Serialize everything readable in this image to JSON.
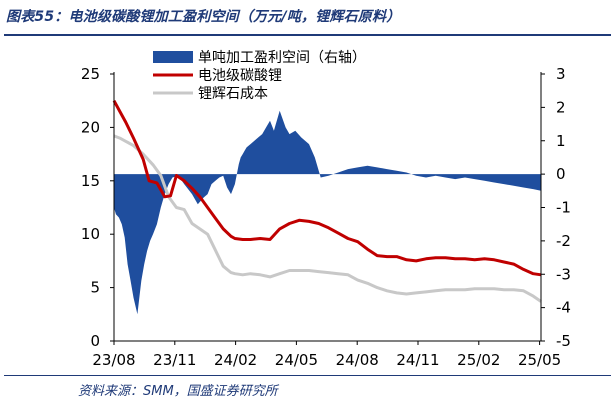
{
  "title": "图表55：电池级碳酸锂加工盈利空间（万元/吨，锂辉石原料）",
  "source": "资料来源：SMM，国盛证券研究所",
  "chart_data": {
    "type": "line",
    "x_tick_labels": [
      "23/08",
      "23/11",
      "24/02",
      "24/05",
      "24/08",
      "24/11",
      "25/02",
      "25/05"
    ],
    "y_left": {
      "ticks": [
        0,
        5,
        10,
        15,
        20,
        25
      ],
      "ylim": [
        0,
        25
      ]
    },
    "y_right": {
      "ticks": [
        -5,
        -4,
        -3,
        -2,
        -1,
        0,
        1,
        2,
        3
      ],
      "ylim": [
        -5,
        3
      ]
    },
    "legend": {
      "placement": "top-left"
    },
    "series": [
      {
        "name": "单吨加工盈利空间（右轴）",
        "type": "area",
        "axis": "right",
        "color": "#1f4e9e",
        "x": [
          0,
          0.1,
          0.25,
          0.4,
          0.55,
          0.7,
          0.85,
          1.0,
          1.2,
          1.4,
          1.55,
          1.7,
          1.85,
          2.0,
          2.2,
          2.4,
          2.6,
          2.8,
          3.0,
          3.3,
          3.6,
          4.0,
          4.3,
          4.6,
          4.8,
          5.0,
          5.2,
          5.4,
          5.6,
          5.8,
          6.0,
          6.2,
          6.4,
          6.5,
          6.6,
          6.7,
          6.8,
          7.0,
          7.2,
          7.4,
          7.6,
          7.8,
          8.0,
          8.2,
          8.5,
          8.8,
          9.0,
          9.3,
          9.6,
          10.0,
          10.3,
          10.6,
          11.0,
          11.5,
          12.0,
          12.5,
          13.0,
          13.5,
          14.0,
          14.5,
          15.0,
          15.5,
          16.0,
          16.5,
          17.0,
          17.5,
          18.0,
          18.5,
          19.0,
          19.5,
          20.0,
          20.5,
          21.0,
          21.5,
          21.9
        ],
        "values": [
          -1.0,
          -1.2,
          -1.3,
          -1.5,
          -1.9,
          -2.7,
          -3.2,
          -3.7,
          -4.2,
          -3.2,
          -2.7,
          -2.3,
          -2.0,
          -1.8,
          -1.5,
          -1.0,
          -0.6,
          -0.3,
          -0.1,
          -0.05,
          -0.3,
          -0.6,
          -0.9,
          -0.7,
          -0.6,
          -0.3,
          -0.2,
          -0.1,
          -0.05,
          -0.4,
          -0.6,
          -0.3,
          0.3,
          0.5,
          0.6,
          0.7,
          0.8,
          0.9,
          1.0,
          1.1,
          1.2,
          1.4,
          1.6,
          1.3,
          1.9,
          1.4,
          1.2,
          1.3,
          1.1,
          0.9,
          0.5,
          -0.1,
          -0.05,
          0.05,
          0.15,
          0.2,
          0.25,
          0.2,
          0.15,
          0.1,
          0.05,
          -0.05,
          -0.1,
          -0.05,
          -0.1,
          -0.15,
          -0.1,
          -0.15,
          -0.2,
          -0.25,
          -0.3,
          -0.35,
          -0.4,
          -0.45,
          -0.5
        ]
      },
      {
        "name": "电池级碳酸锂",
        "type": "line",
        "axis": "left",
        "color": "#c00000",
        "x": [
          0,
          0.3,
          0.6,
          1.0,
          1.5,
          1.8,
          2.2,
          2.6,
          2.9,
          3.2,
          3.6,
          4.0,
          4.4,
          4.8,
          5.2,
          5.6,
          6.0,
          6.2,
          6.6,
          7.0,
          7.5,
          8.0,
          8.5,
          9.0,
          9.5,
          10.0,
          10.5,
          11.0,
          11.5,
          12.0,
          12.5,
          13.0,
          13.5,
          14.0,
          14.5,
          15.0,
          15.5,
          16.0,
          16.5,
          17.0,
          17.5,
          18.0,
          18.5,
          19.0,
          19.5,
          20.0,
          20.5,
          21.0,
          21.5,
          21.9
        ],
        "values": [
          22.5,
          21.5,
          20.5,
          19.0,
          17.0,
          15.0,
          14.8,
          13.5,
          13.6,
          15.5,
          15.0,
          14.3,
          13.5,
          12.5,
          11.5,
          10.5,
          9.8,
          9.6,
          9.5,
          9.5,
          9.6,
          9.5,
          10.5,
          11.0,
          11.3,
          11.2,
          11.0,
          10.6,
          10.1,
          9.6,
          9.3,
          8.6,
          8.0,
          7.9,
          7.9,
          7.6,
          7.5,
          7.7,
          7.8,
          7.8,
          7.7,
          7.7,
          7.6,
          7.7,
          7.6,
          7.4,
          7.2,
          6.7,
          6.3,
          6.2
        ]
      },
      {
        "name": "锂辉石成本",
        "type": "line",
        "axis": "left",
        "color": "#c8c8c8",
        "x": [
          0,
          0.3,
          0.6,
          1.0,
          1.5,
          2.0,
          2.4,
          2.8,
          3.2,
          3.6,
          4.0,
          4.4,
          4.8,
          5.2,
          5.6,
          6.0,
          6.2,
          6.6,
          7.0,
          7.5,
          8.0,
          8.5,
          9.0,
          9.5,
          10.0,
          10.5,
          11.0,
          11.5,
          12.0,
          12.5,
          13.0,
          13.5,
          14.0,
          14.5,
          15.0,
          15.5,
          16.0,
          16.5,
          17.0,
          17.5,
          18.0,
          18.5,
          19.0,
          19.5,
          20.0,
          20.5,
          21.0,
          21.5,
          21.9
        ],
        "values": [
          19.2,
          19.0,
          18.7,
          18.3,
          17.5,
          16.5,
          15.5,
          13.5,
          12.5,
          12.3,
          11.0,
          10.5,
          10.0,
          8.5,
          7.0,
          6.4,
          6.3,
          6.2,
          6.3,
          6.2,
          6.0,
          6.3,
          6.6,
          6.6,
          6.6,
          6.5,
          6.4,
          6.3,
          6.2,
          5.7,
          5.4,
          5.0,
          4.7,
          4.5,
          4.4,
          4.5,
          4.6,
          4.7,
          4.8,
          4.8,
          4.8,
          4.9,
          4.9,
          4.9,
          4.8,
          4.8,
          4.7,
          4.2,
          3.7
        ]
      }
    ]
  }
}
